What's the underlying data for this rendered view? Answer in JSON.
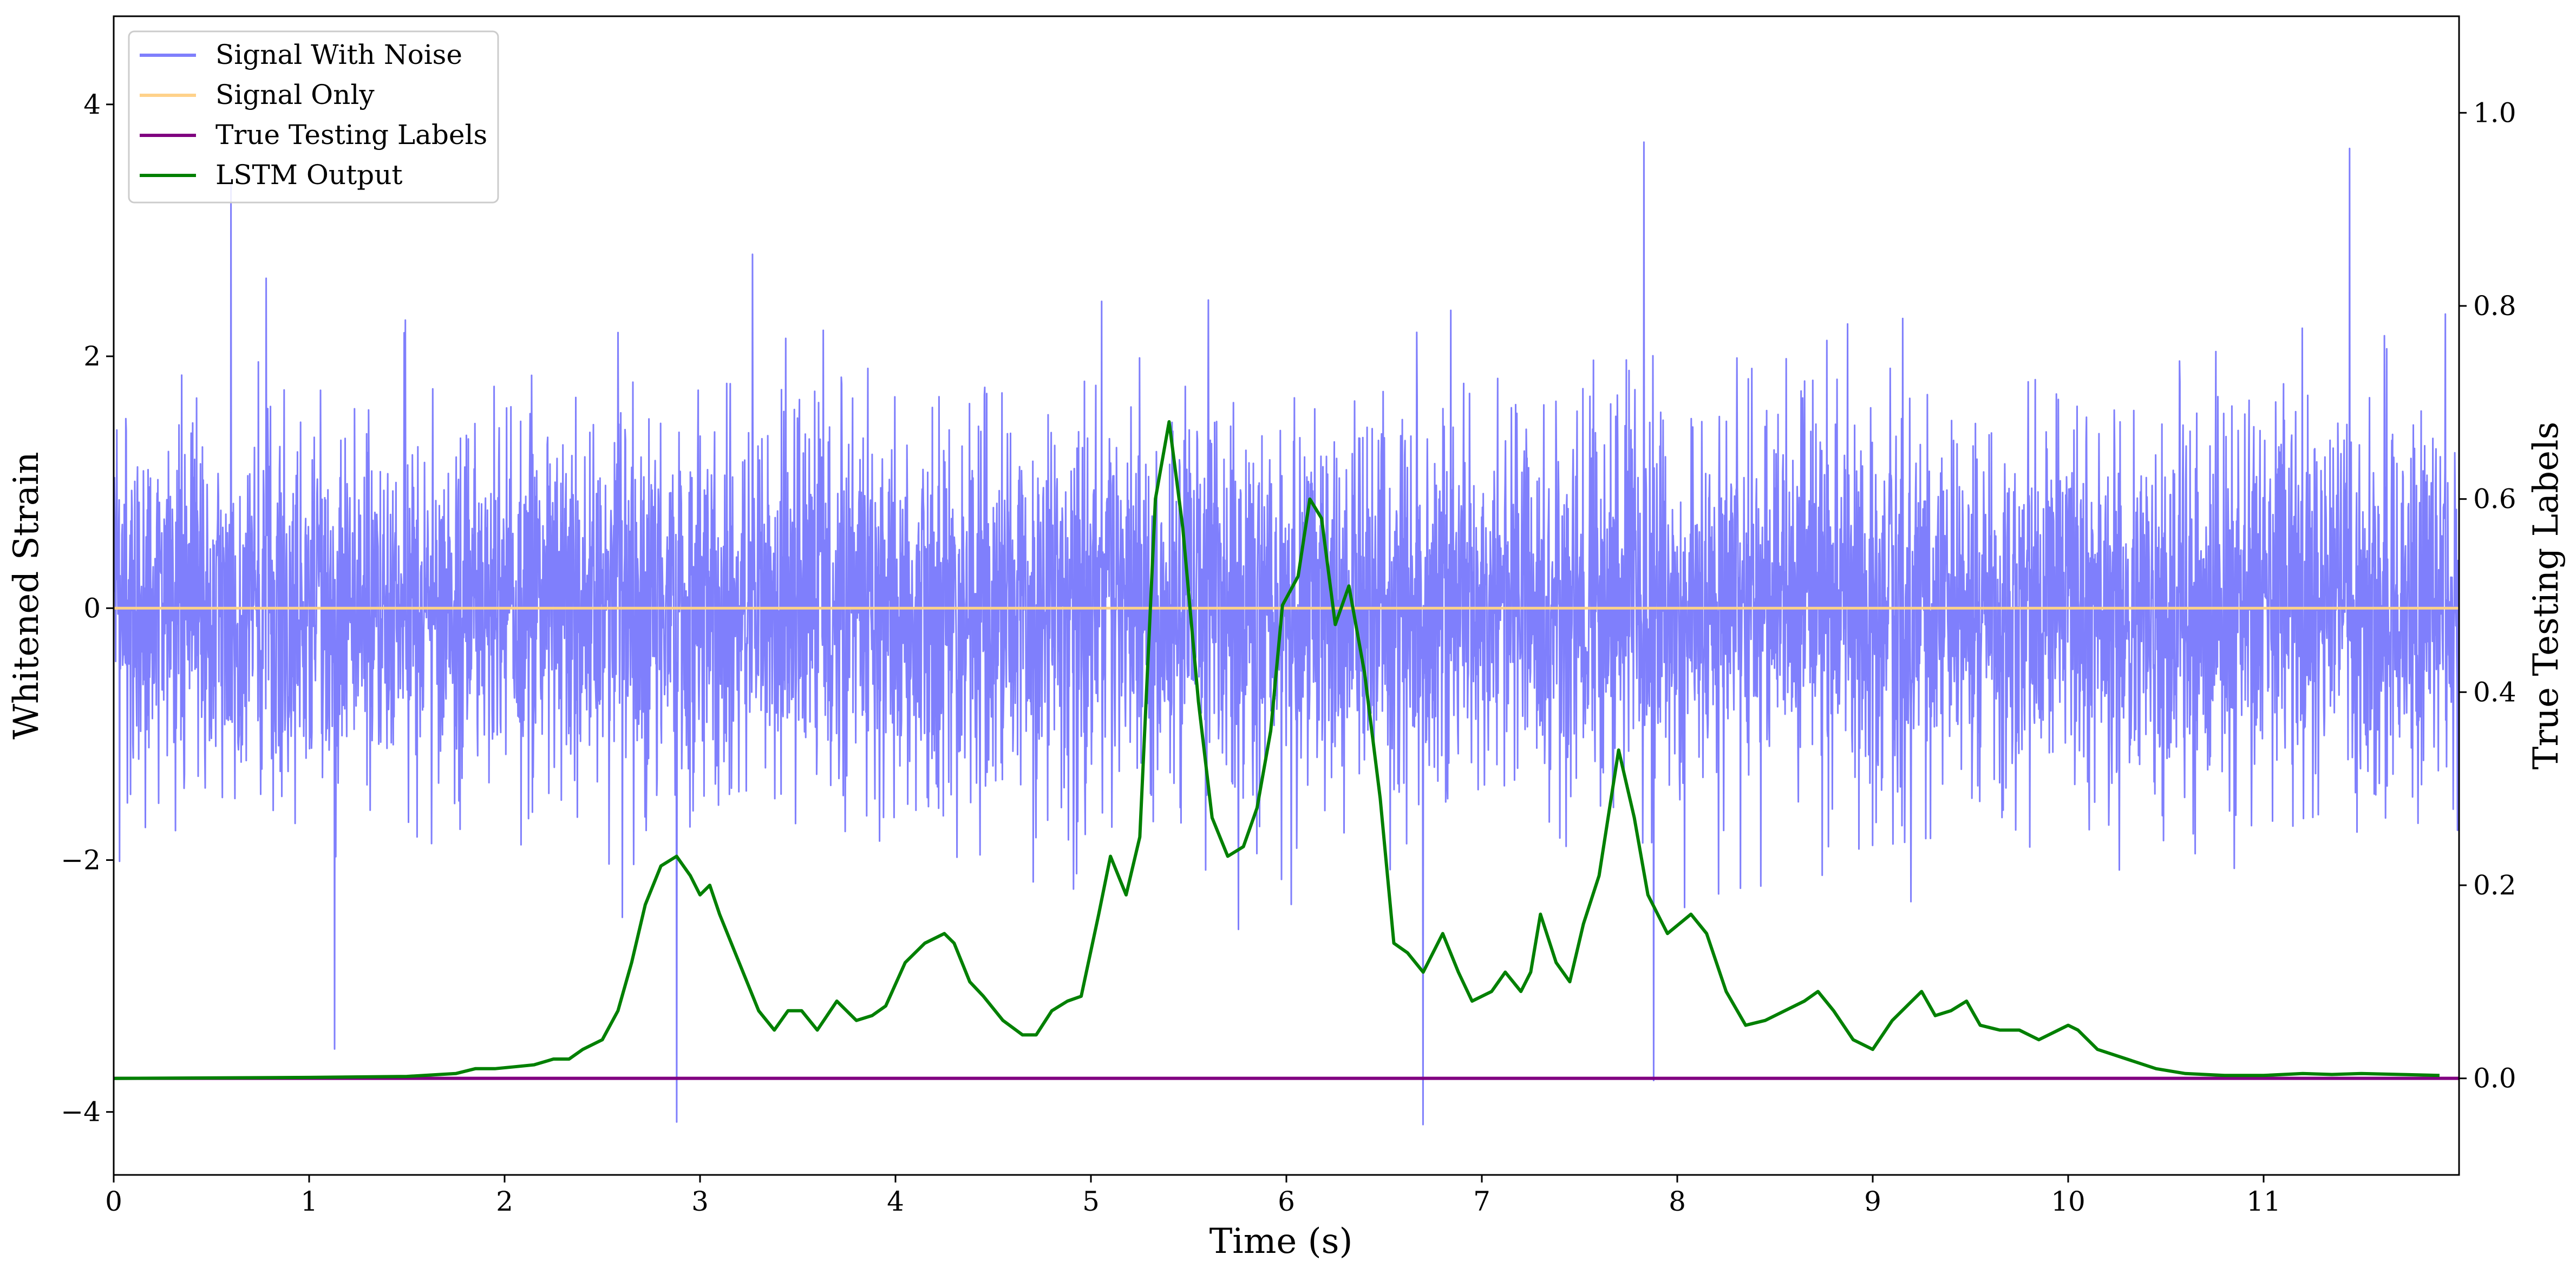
{
  "chart_data": {
    "type": "line",
    "xlabel": "Time (s)",
    "ylabel_left": "Whitened Strain",
    "ylabel_right": "True Testing Labels",
    "xlim": [
      0,
      12
    ],
    "ylim_left": [
      -4.5,
      4.7
    ],
    "ylim_right": [
      -0.1,
      1.1
    ],
    "x_ticks": [
      "0",
      "1",
      "2",
      "3",
      "4",
      "5",
      "6",
      "7",
      "8",
      "9",
      "10",
      "11"
    ],
    "y_left_ticks": [
      "−4",
      "−2",
      "0",
      "2",
      "4"
    ],
    "y_right_ticks": [
      "0.0",
      "0.2",
      "0.4",
      "0.6",
      "0.8",
      "1.0"
    ],
    "legend": {
      "location": "upper-left",
      "entries": [
        "Signal With Noise",
        "Signal Only",
        "True Testing Labels",
        "LSTM Output"
      ]
    },
    "colors": {
      "signal_with_noise": "#7f7ffc",
      "signal_only": "#ffd28a",
      "true_labels": "#800080",
      "lstm_output": "#008000"
    },
    "series": [
      {
        "name": "Signal With Noise",
        "axis": "left",
        "description_values": {
          "mean": 0.0,
          "std": 0.75,
          "min": -4.1,
          "max": 3.7,
          "noise_seed": 42
        },
        "spikes": [
          {
            "x": 2.88,
            "y": -4.08
          },
          {
            "x": 6.7,
            "y": -4.1
          },
          {
            "x": 7.83,
            "y": 3.7
          },
          {
            "x": 7.88,
            "y": -3.75
          },
          {
            "x": 11.44,
            "y": 3.65
          },
          {
            "x": 1.13,
            "y": -3.5
          },
          {
            "x": 0.6,
            "y": 3.4
          }
        ]
      },
      {
        "name": "Signal Only",
        "axis": "left",
        "x": [
          0,
          12
        ],
        "y": [
          0,
          0
        ]
      },
      {
        "name": "True Testing Labels",
        "axis": "right",
        "x": [
          0,
          12
        ],
        "y": [
          0,
          0
        ]
      },
      {
        "name": "LSTM Output",
        "axis": "right",
        "x": [
          0,
          1,
          1.5,
          1.75,
          1.85,
          1.95,
          2.05,
          2.15,
          2.25,
          2.33,
          2.4,
          2.5,
          2.58,
          2.65,
          2.72,
          2.8,
          2.88,
          2.95,
          3.0,
          3.05,
          3.1,
          3.2,
          3.3,
          3.38,
          3.45,
          3.52,
          3.6,
          3.7,
          3.8,
          3.88,
          3.95,
          4.05,
          4.15,
          4.25,
          4.3,
          4.38,
          4.45,
          4.55,
          4.65,
          4.72,
          4.8,
          4.88,
          4.95,
          5.04,
          5.1,
          5.18,
          5.25,
          5.33,
          5.4,
          5.47,
          5.55,
          5.62,
          5.7,
          5.78,
          5.85,
          5.92,
          5.98,
          6.06,
          6.12,
          6.18,
          6.25,
          6.32,
          6.4,
          6.48,
          6.55,
          6.62,
          6.7,
          6.8,
          6.88,
          6.95,
          7.05,
          7.12,
          7.2,
          7.25,
          7.3,
          7.38,
          7.45,
          7.52,
          7.6,
          7.7,
          7.78,
          7.85,
          7.95,
          8.07,
          8.15,
          8.25,
          8.35,
          8.45,
          8.55,
          8.65,
          8.72,
          8.8,
          8.9,
          9.0,
          9.1,
          9.2,
          9.25,
          9.32,
          9.4,
          9.48,
          9.55,
          9.65,
          9.75,
          9.85,
          9.95,
          10.0,
          10.05,
          10.15,
          10.3,
          10.45,
          10.6,
          10.8,
          11.0,
          11.2,
          11.35,
          11.5,
          11.7,
          11.9
        ],
        "y": [
          0,
          0.001,
          0.002,
          0.005,
          0.01,
          0.01,
          0.012,
          0.014,
          0.02,
          0.02,
          0.03,
          0.04,
          0.07,
          0.12,
          0.18,
          0.22,
          0.23,
          0.21,
          0.19,
          0.2,
          0.17,
          0.12,
          0.07,
          0.05,
          0.07,
          0.07,
          0.05,
          0.08,
          0.06,
          0.065,
          0.075,
          0.12,
          0.14,
          0.15,
          0.14,
          0.1,
          0.085,
          0.06,
          0.045,
          0.045,
          0.07,
          0.08,
          0.085,
          0.17,
          0.23,
          0.19,
          0.25,
          0.6,
          0.68,
          0.57,
          0.39,
          0.27,
          0.23,
          0.24,
          0.28,
          0.36,
          0.49,
          0.52,
          0.6,
          0.58,
          0.47,
          0.51,
          0.42,
          0.29,
          0.14,
          0.13,
          0.11,
          0.15,
          0.11,
          0.08,
          0.09,
          0.11,
          0.09,
          0.11,
          0.17,
          0.12,
          0.1,
          0.16,
          0.21,
          0.34,
          0.27,
          0.19,
          0.15,
          0.17,
          0.15,
          0.09,
          0.055,
          0.06,
          0.07,
          0.08,
          0.09,
          0.07,
          0.04,
          0.03,
          0.06,
          0.08,
          0.09,
          0.065,
          0.07,
          0.08,
          0.055,
          0.05,
          0.05,
          0.04,
          0.05,
          0.055,
          0.05,
          0.03,
          0.02,
          0.01,
          0.005,
          0.003,
          0.003,
          0.005,
          0.004,
          0.005,
          0.004,
          0.003
        ]
      }
    ]
  }
}
